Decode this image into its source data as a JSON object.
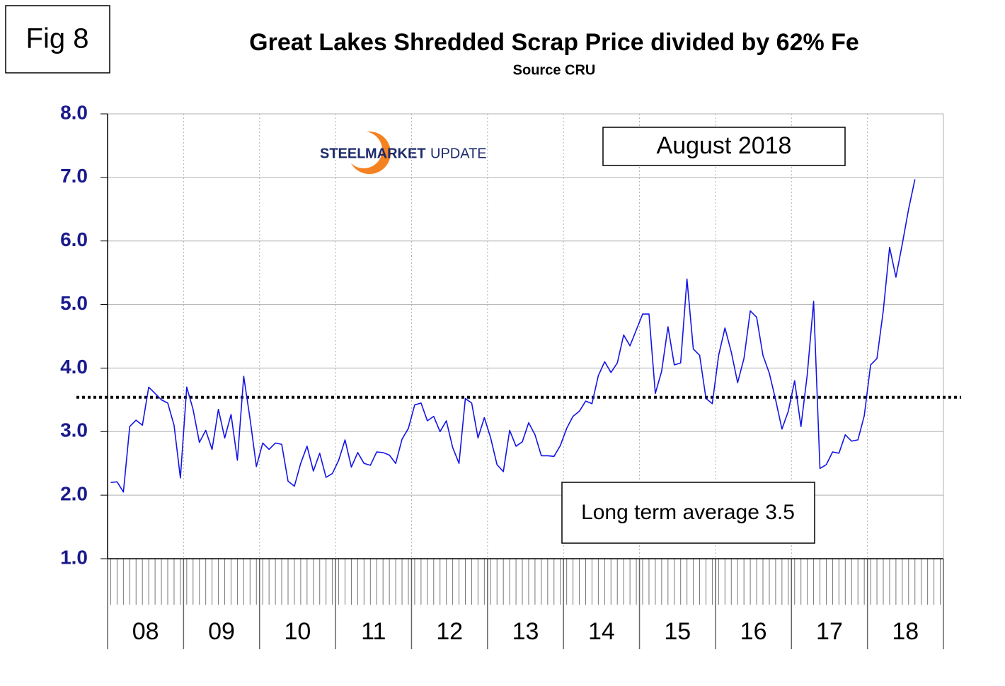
{
  "chart_data": {
    "type": "line",
    "fig_label": "Fig 8",
    "title": "Great Lakes Shredded Scrap Price divided by 62% Fe",
    "subtitle": "Source CRU",
    "logo": [
      "STEEL",
      "MARKET",
      "UPDATE"
    ],
    "annotations": [
      "August 2018",
      "Long term average 3.5"
    ],
    "year_labels": [
      "08",
      "09",
      "10",
      "11",
      "12",
      "13",
      "14",
      "15",
      "16",
      "17",
      "18"
    ],
    "color": "#1414e6",
    "average_line": 3.54,
    "ylim": [
      1,
      8
    ],
    "yticks": [
      {
        "value": 1,
        "label": "1.0"
      },
      {
        "value": 2,
        "label": "2.0"
      },
      {
        "value": 3,
        "label": "3.0"
      },
      {
        "value": 4,
        "label": "4.0"
      },
      {
        "value": 5,
        "label": "5.0"
      },
      {
        "value": 6,
        "label": "6.0"
      },
      {
        "value": 7,
        "label": "7.0"
      },
      {
        "value": 8,
        "label": "8.0"
      }
    ],
    "grid": true,
    "values": [
      2.2,
      2.21,
      2.05,
      3.08,
      3.18,
      3.1,
      3.7,
      3.6,
      3.5,
      3.45,
      3.1,
      2.27,
      3.7,
      3.35,
      2.83,
      3.02,
      2.72,
      3.35,
      2.9,
      3.27,
      2.55,
      3.87,
      3.2,
      2.45,
      2.82,
      2.72,
      2.82,
      2.8,
      2.22,
      2.14,
      2.5,
      2.77,
      2.38,
      2.66,
      2.28,
      2.34,
      2.55,
      2.87,
      2.44,
      2.67,
      2.5,
      2.47,
      2.68,
      2.67,
      2.63,
      2.5,
      2.88,
      3.05,
      3.42,
      3.45,
      3.17,
      3.24,
      3.0,
      3.17,
      2.75,
      2.5,
      3.52,
      3.45,
      2.9,
      3.22,
      2.9,
      2.48,
      2.37,
      3.02,
      2.77,
      2.84,
      3.14,
      2.95,
      2.62,
      2.62,
      2.61,
      2.78,
      3.05,
      3.24,
      3.32,
      3.48,
      3.44,
      3.88,
      4.1,
      3.93,
      4.08,
      4.52,
      4.35,
      4.6,
      4.85,
      4.85,
      3.6,
      3.95,
      4.65,
      4.05,
      4.08,
      5.4,
      4.3,
      4.2,
      3.52,
      3.44,
      4.2,
      4.63,
      4.25,
      3.77,
      4.15,
      4.9,
      4.8,
      4.2,
      3.92,
      3.5,
      3.04,
      3.32,
      3.8,
      3.08,
      3.9,
      5.05,
      2.42,
      2.48,
      2.68,
      2.66,
      2.95,
      2.85,
      2.87,
      3.25,
      4.05,
      4.15,
      4.9,
      5.9,
      5.43,
      5.95,
      6.5,
      6.97
    ]
  }
}
